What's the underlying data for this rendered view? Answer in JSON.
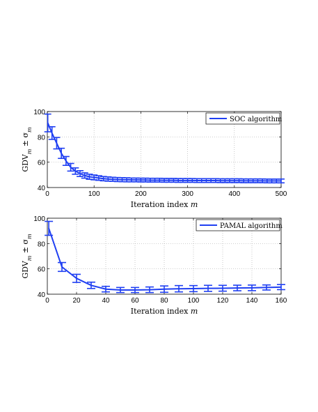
{
  "chart_data": [
    {
      "type": "line",
      "xlabel": "Iteration index m",
      "ylabel": "GDV_m ± σ_m",
      "xlim": [
        0,
        500
      ],
      "ylim": [
        40,
        100
      ],
      "xticks": [
        0,
        100,
        200,
        300,
        400,
        500
      ],
      "yticks": [
        40,
        60,
        80,
        100
      ],
      "grid": true,
      "legend_position": "top-right",
      "series": [
        {
          "name": "SOC algorithm",
          "color": "#1f3ff2",
          "x": [
            1,
            10,
            20,
            30,
            40,
            50,
            60,
            70,
            80,
            90,
            100,
            110,
            120,
            130,
            140,
            150,
            160,
            170,
            180,
            190,
            200,
            210,
            220,
            230,
            240,
            250,
            260,
            270,
            280,
            290,
            300,
            310,
            320,
            330,
            340,
            350,
            360,
            370,
            380,
            390,
            400,
            410,
            420,
            430,
            440,
            450,
            460,
            470,
            480,
            490,
            500
          ],
          "y": [
            91,
            83,
            75,
            67,
            61,
            56,
            53,
            51,
            49.5,
            48.5,
            48,
            47.5,
            47,
            46.7,
            46.5,
            46.3,
            46.2,
            46.1,
            46,
            46,
            45.9,
            45.9,
            45.8,
            45.8,
            45.8,
            45.7,
            45.7,
            45.7,
            45.6,
            45.6,
            45.6,
            45.6,
            45.5,
            45.5,
            45.5,
            45.5,
            45.5,
            45.4,
            45.4,
            45.4,
            45.4,
            45.4,
            45.3,
            45.3,
            45.3,
            45.3,
            45.3,
            45.2,
            45.2,
            45.2,
            45.2
          ],
          "err": [
            7,
            5,
            4.5,
            4,
            3.5,
            3,
            2.5,
            2.3,
            2.1,
            2,
            1.9,
            1.8,
            1.7,
            1.7,
            1.6,
            1.6,
            1.6,
            1.6,
            1.5,
            1.5,
            1.5,
            1.5,
            1.5,
            1.5,
            1.5,
            1.5,
            1.5,
            1.5,
            1.5,
            1.5,
            1.5,
            1.5,
            1.5,
            1.5,
            1.5,
            1.5,
            1.5,
            1.5,
            1.5,
            1.5,
            1.5,
            1.5,
            1.5,
            1.5,
            1.5,
            1.5,
            1.5,
            1.5,
            1.5,
            1.5,
            1.5
          ]
        }
      ]
    },
    {
      "type": "line",
      "xlabel": "Iteration index m",
      "ylabel": "GDV_m ± σ_m",
      "xlim": [
        0,
        160
      ],
      "ylim": [
        40,
        100
      ],
      "xticks": [
        0,
        20,
        40,
        60,
        80,
        100,
        120,
        140,
        160
      ],
      "yticks": [
        40,
        60,
        80,
        100
      ],
      "grid": true,
      "legend_position": "top-right",
      "series": [
        {
          "name": "PAMAL algorithm",
          "color": "#1f3ff2",
          "x": [
            1,
            10,
            20,
            30,
            40,
            50,
            60,
            70,
            80,
            90,
            100,
            110,
            120,
            130,
            140,
            150,
            160
          ],
          "y": [
            92,
            61.5,
            52.5,
            47,
            44,
            43.3,
            43.3,
            43.5,
            44,
            44.3,
            44.4,
            44.6,
            44.7,
            44.9,
            45,
            45.3,
            45.6
          ],
          "err": [
            5.5,
            3.5,
            3.2,
            2.5,
            2.2,
            2,
            2,
            2.2,
            2.5,
            2.5,
            2.4,
            2.4,
            2.3,
            2.2,
            2.2,
            2,
            2
          ]
        }
      ]
    }
  ]
}
